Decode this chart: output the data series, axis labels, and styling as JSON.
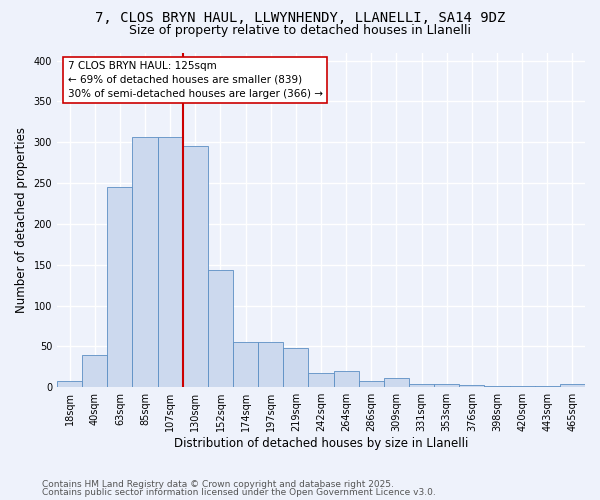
{
  "title_line1": "7, CLOS BRYN HAUL, LLWYNHENDY, LLANELLI, SA14 9DZ",
  "title_line2": "Size of property relative to detached houses in Llanelli",
  "xlabel": "Distribution of detached houses by size in Llanelli",
  "ylabel": "Number of detached properties",
  "bar_labels": [
    "18sqm",
    "40sqm",
    "63sqm",
    "85sqm",
    "107sqm",
    "130sqm",
    "152sqm",
    "174sqm",
    "197sqm",
    "219sqm",
    "242sqm",
    "264sqm",
    "286sqm",
    "309sqm",
    "331sqm",
    "353sqm",
    "376sqm",
    "398sqm",
    "420sqm",
    "443sqm",
    "465sqm"
  ],
  "bar_values": [
    7,
    40,
    245,
    307,
    307,
    295,
    143,
    55,
    55,
    48,
    18,
    20,
    8,
    11,
    4,
    4,
    3,
    2,
    1,
    1,
    4
  ],
  "bar_color": "#ccd9ee",
  "bar_edge_color": "#5b8ec4",
  "vline_color": "#cc0000",
  "annotation_text": "7 CLOS BRYN HAUL: 125sqm\n← 69% of detached houses are smaller (839)\n30% of semi-detached houses are larger (366) →",
  "annotation_box_color": "#ffffff",
  "annotation_box_edge_color": "#cc0000",
  "ylim": [
    0,
    410
  ],
  "yticks": [
    0,
    50,
    100,
    150,
    200,
    250,
    300,
    350,
    400
  ],
  "background_color": "#eef2fb",
  "plot_bg_color": "#eef2fb",
  "grid_color": "#ffffff",
  "footer_line1": "Contains HM Land Registry data © Crown copyright and database right 2025.",
  "footer_line2": "Contains public sector information licensed under the Open Government Licence v3.0.",
  "title_fontsize": 10,
  "subtitle_fontsize": 9,
  "axis_label_fontsize": 8.5,
  "tick_fontsize": 7,
  "annotation_fontsize": 7.5,
  "footer_fontsize": 6.5
}
